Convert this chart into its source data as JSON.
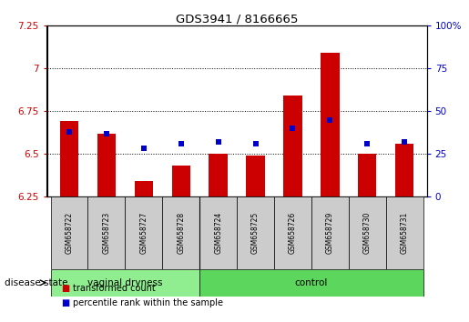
{
  "title": "GDS3941 / 8166665",
  "samples": [
    "GSM658722",
    "GSM658723",
    "GSM658727",
    "GSM658728",
    "GSM658724",
    "GSM658725",
    "GSM658726",
    "GSM658729",
    "GSM658730",
    "GSM658731"
  ],
  "red_values": [
    6.69,
    6.62,
    6.34,
    6.43,
    6.5,
    6.49,
    6.84,
    7.09,
    6.5,
    6.56
  ],
  "blue_pct": [
    38,
    37,
    28,
    31,
    32,
    31,
    40,
    45,
    31,
    32
  ],
  "ylim_left": [
    6.25,
    7.25
  ],
  "ylim_right": [
    0,
    100
  ],
  "yticks_left": [
    6.25,
    6.5,
    6.75,
    7.0,
    7.25
  ],
  "yticks_right": [
    0,
    25,
    50,
    75,
    100
  ],
  "ytick_labels_left": [
    "6.25",
    "6.5",
    "6.75",
    "7",
    "7.25"
  ],
  "ytick_labels_right": [
    "0",
    "25",
    "50",
    "75",
    "100%"
  ],
  "grid_lines": [
    7.0,
    6.75,
    6.5
  ],
  "group1_label": "vaginal dryness",
  "group2_label": "control",
  "group1_count": 4,
  "group2_count": 6,
  "disease_state_label": "disease state",
  "legend1": "transformed count",
  "legend2": "percentile rank within the sample",
  "red_color": "#cc0000",
  "blue_color": "#0000cc",
  "bar_width": 0.5,
  "base_value": 6.25,
  "group1_bg": "#90ee90",
  "group2_bg": "#5cd65c",
  "sample_bg": "#cccccc",
  "blue_marker_size": 5
}
